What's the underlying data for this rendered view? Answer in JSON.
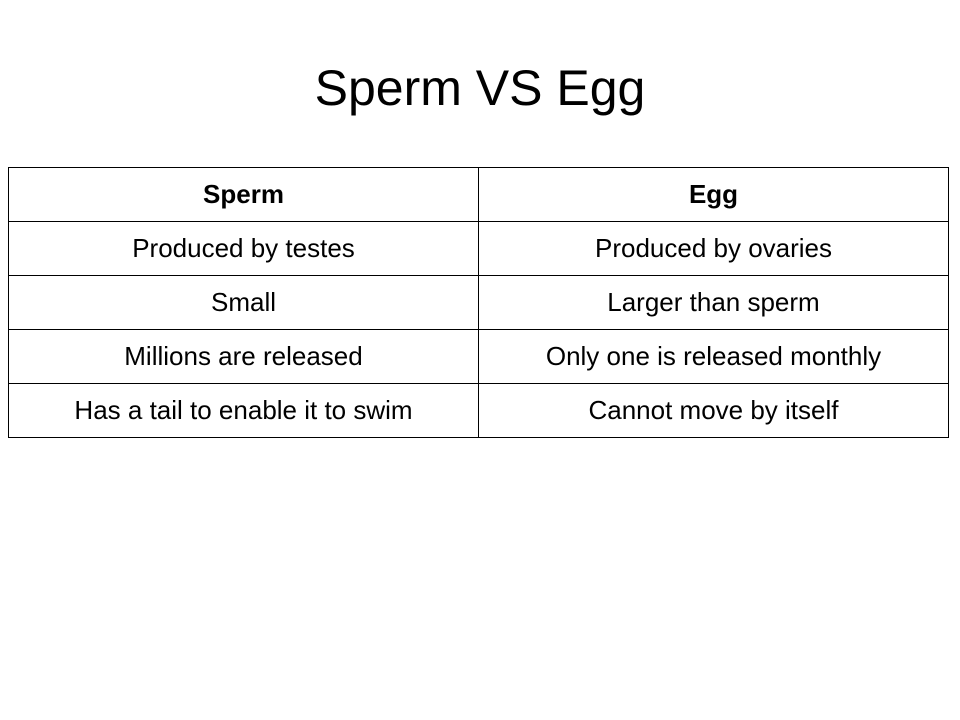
{
  "slide": {
    "title": "Sperm VS Egg"
  },
  "table": {
    "headers": [
      "Sperm",
      "Egg"
    ],
    "rows": [
      [
        "Produced by testes",
        "Produced by ovaries"
      ],
      [
        "Small",
        "Larger than sperm"
      ],
      [
        "Millions are released",
        "Only one is released monthly"
      ],
      [
        "Has a tail to enable it to swim",
        "Cannot move by itself"
      ]
    ]
  }
}
